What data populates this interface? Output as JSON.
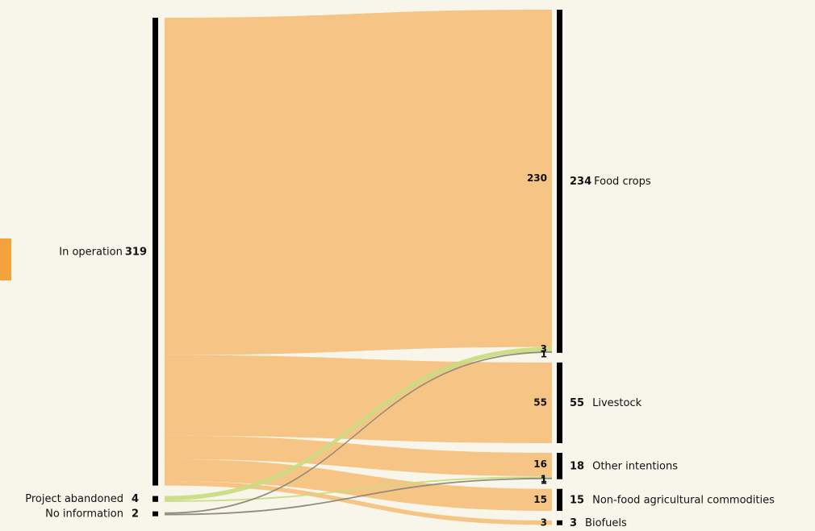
{
  "chart_data": {
    "type": "sankey",
    "left_nodes": [
      {
        "name": "In operation",
        "value": 319
      },
      {
        "name": "Project abandoned",
        "value": 4
      },
      {
        "name": "No information",
        "value": 2
      }
    ],
    "right_nodes": [
      {
        "name": "Food crops",
        "value": 234
      },
      {
        "name": "Livestock",
        "value": 55
      },
      {
        "name": "Other intentions",
        "value": 18
      },
      {
        "name": "Non-food agricultural commodities",
        "value": 15
      },
      {
        "name": "Biofuels",
        "value": 3
      }
    ],
    "links": [
      {
        "source": "In operation",
        "target": "Food crops",
        "value": 230,
        "color": "#f5c17e"
      },
      {
        "source": "In operation",
        "target": "Livestock",
        "value": 55,
        "color": "#f5c17e"
      },
      {
        "source": "In operation",
        "target": "Other intentions",
        "value": 16,
        "color": "#f5c17e"
      },
      {
        "source": "In operation",
        "target": "Non-food agricultural commodities",
        "value": 15,
        "color": "#f5c17e"
      },
      {
        "source": "In operation",
        "target": "Biofuels",
        "value": 3,
        "color": "#f5c17e"
      },
      {
        "source": "Project abandoned",
        "target": "Food crops",
        "value": 3,
        "color": "#c9dc82"
      },
      {
        "source": "Project abandoned",
        "target": "Other intentions",
        "value": 1,
        "color": "#c9dc82"
      },
      {
        "source": "No information",
        "target": "Food crops",
        "value": 1,
        "color": "#8a8778"
      },
      {
        "source": "No information",
        "target": "Other intentions",
        "value": 1,
        "color": "#8a8778"
      }
    ]
  }
}
